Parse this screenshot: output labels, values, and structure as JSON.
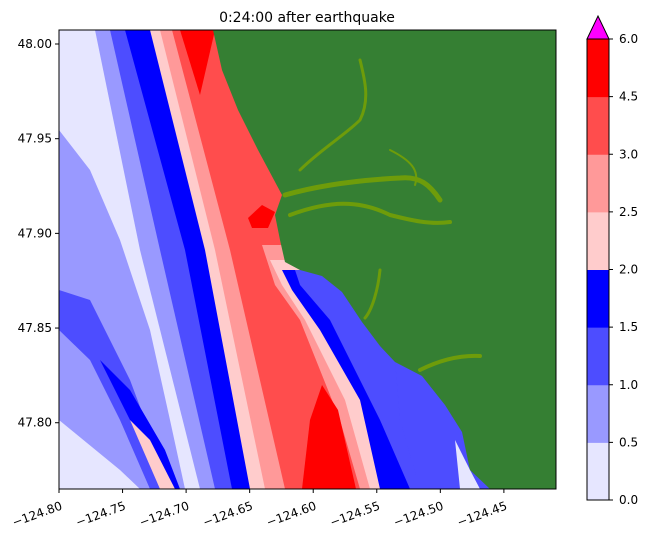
{
  "chart_data": {
    "type": "heatmap",
    "title": "0:24:00 after earthquake",
    "xlabel": "",
    "ylabel": "",
    "xlim": [
      -124.8,
      -124.409
    ],
    "ylim": [
      47.765,
      48.0074
    ],
    "x_ticks": [
      "−124.80",
      "−124.75",
      "−124.70",
      "−124.65",
      "−124.60",
      "−124.55",
      "−124.50",
      "−124.45"
    ],
    "x_tick_values": [
      -124.8,
      -124.75,
      -124.7,
      -124.65,
      -124.6,
      -124.55,
      -124.5,
      -124.45
    ],
    "y_ticks": [
      "47.80",
      "47.85",
      "47.90",
      "47.95",
      "48.00"
    ],
    "y_tick_values": [
      47.8,
      47.85,
      47.9,
      47.95,
      48.0
    ],
    "colorbar": {
      "levels": [
        0.0,
        0.5,
        1.0,
        1.5,
        2.0,
        2.5,
        3.0,
        4.5,
        6.0
      ],
      "tick_labels": [
        "0.0",
        "0.5",
        "1.0",
        "1.5",
        "2.0",
        "2.5",
        "3.0",
        "4.5",
        "6.0"
      ],
      "colors": [
        "#e6e6ff",
        "#9999ff",
        "#4d4dff",
        "#0000ff",
        "#ffcccc",
        "#ff9999",
        "#ff4d4d",
        "#ff0000"
      ],
      "extend_max_color": "#ff00ff"
    },
    "land_color": "#357f33",
    "river_color": "#6e9c0a"
  }
}
